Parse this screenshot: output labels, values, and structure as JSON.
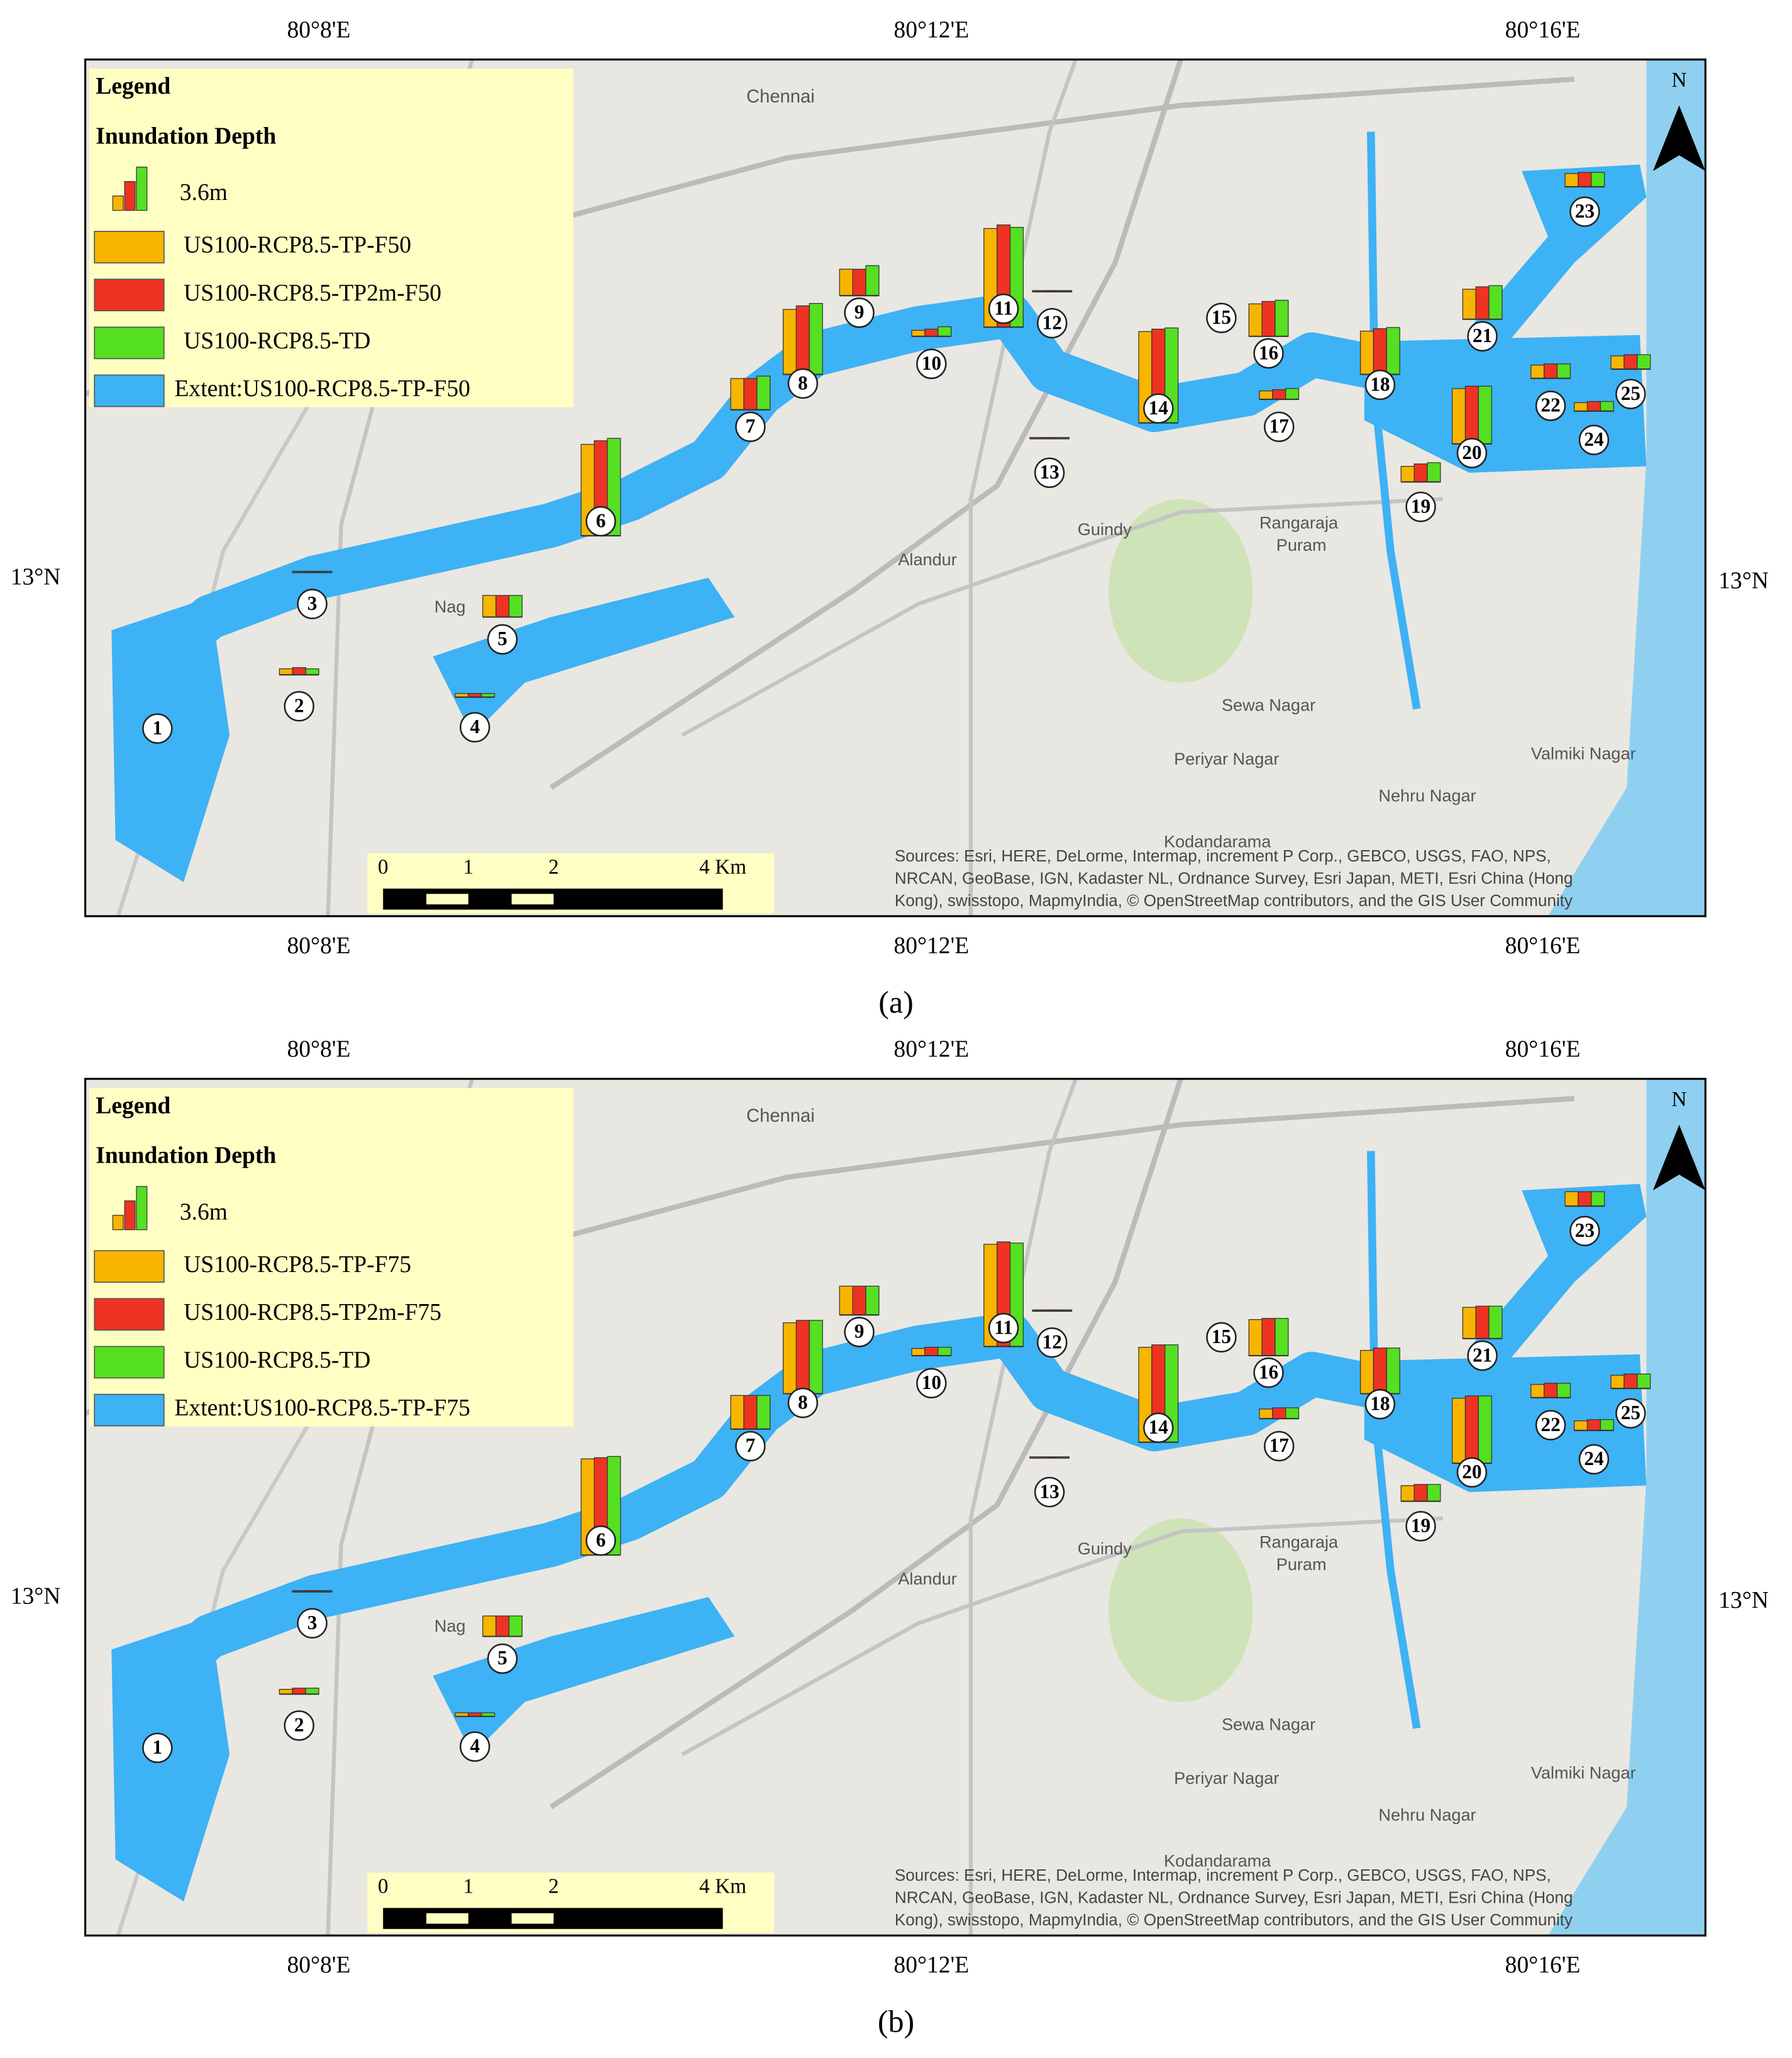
{
  "panels": [
    {
      "caption": "(a)",
      "lon_labels": [
        "80°8'E",
        "80°12'E",
        "80°16'E"
      ],
      "lat_label": "13°N",
      "north": "N",
      "legend": {
        "title": "Legend",
        "subtitle": "Inundation Depth",
        "scale_value": 3.6,
        "scale_label": "3.6m",
        "items": [
          {
            "label": "US100-RCP8.5-TP-F50",
            "color": "#f7b500"
          },
          {
            "label": "US100-RCP8.5-TP2m-F50",
            "color": "#ee3322"
          },
          {
            "label": "US100-RCP8.5-TD",
            "color": "#55e022"
          },
          {
            "label": "Extent:US100-RCP8.5-TP-F50",
            "color": "#3db2f5"
          }
        ]
      },
      "places": [
        "Chennai",
        "Alandur",
        "Guindy",
        "Rangaraja",
        "Puram",
        "Sewa Nagar",
        "Periyar Nagar",
        "Nehru Nagar",
        "Valmiki Nagar",
        "Kodandarama",
        "Nag"
      ],
      "scalebar_labels": [
        "0",
        "1",
        "2",
        "4 Km"
      ],
      "sources": [
        "Sources: Esri, HERE, DeLorme, Intermap, increment P Corp., GEBCO, USGS, FAO, NPS,",
        "NRCAN, GeoBase, IGN, Kadaster NL, Ordnance Survey, Esri Japan, METI, Esri China (Hong",
        "Kong), swisstopo, MapmyIndia, © OpenStreetMap contributors, and the GIS User Community"
      ],
      "stations": [
        {
          "label": "1",
          "depths": [
            0,
            0,
            0
          ]
        },
        {
          "label": "2",
          "depths": [
            0.5,
            0.6,
            0.5
          ]
        },
        {
          "label": "3",
          "depths": [
            0.1,
            0.1,
            0.1
          ]
        },
        {
          "label": "4",
          "depths": [
            0.3,
            0.3,
            0.3
          ]
        },
        {
          "label": "5",
          "depths": [
            1.8,
            1.8,
            1.8
          ]
        },
        {
          "label": "6",
          "depths": [
            7.6,
            7.9,
            8.1
          ]
        },
        {
          "label": "7",
          "depths": [
            2.6,
            2.6,
            2.8
          ]
        },
        {
          "label": "8",
          "depths": [
            5.4,
            5.7,
            5.9
          ]
        },
        {
          "label": "9",
          "depths": [
            2.2,
            2.2,
            2.5
          ]
        },
        {
          "label": "10",
          "depths": [
            0.5,
            0.6,
            0.8
          ]
        },
        {
          "label": "11",
          "depths": [
            8.2,
            8.5,
            8.3
          ]
        },
        {
          "label": "12",
          "depths": [
            0.1,
            0.1,
            0.1
          ]
        },
        {
          "label": "13",
          "depths": [
            0.1,
            0.1,
            0.1
          ]
        },
        {
          "label": "14",
          "depths": [
            7.6,
            7.8,
            7.9
          ]
        },
        {
          "label": "15",
          "depths": [
            0,
            0,
            0
          ]
        },
        {
          "label": "16",
          "depths": [
            2.7,
            2.9,
            3.0
          ]
        },
        {
          "label": "17",
          "depths": [
            0.7,
            0.8,
            0.9
          ]
        },
        {
          "label": "18",
          "depths": [
            3.6,
            3.8,
            3.9
          ]
        },
        {
          "label": "19",
          "depths": [
            1.3,
            1.5,
            1.6
          ]
        },
        {
          "label": "20",
          "depths": [
            4.6,
            4.8,
            4.8
          ]
        },
        {
          "label": "21",
          "depths": [
            2.5,
            2.7,
            2.8
          ]
        },
        {
          "label": "22",
          "depths": [
            1.1,
            1.2,
            1.2
          ]
        },
        {
          "label": "23",
          "depths": [
            1.1,
            1.2,
            1.2
          ]
        },
        {
          "label": "24",
          "depths": [
            0.7,
            0.8,
            0.8
          ]
        },
        {
          "label": "25",
          "depths": [
            1.1,
            1.2,
            1.2
          ]
        }
      ]
    },
    {
      "caption": "(b)",
      "lon_labels": [
        "80°8'E",
        "80°12'E",
        "80°16'E"
      ],
      "lat_label": "13°N",
      "north": "N",
      "legend": {
        "title": "Legend",
        "subtitle": "Inundation Depth",
        "scale_value": 3.6,
        "scale_label": "3.6m",
        "items": [
          {
            "label": "US100-RCP8.5-TP-F75",
            "color": "#f7b500"
          },
          {
            "label": "US100-RCP8.5-TP2m-F75",
            "color": "#ee3322"
          },
          {
            "label": "US100-RCP8.5-TD",
            "color": "#55e022"
          },
          {
            "label": "Extent:US100-RCP8.5-TP-F75",
            "color": "#3db2f5"
          }
        ]
      },
      "places": [
        "Chennai",
        "Alandur",
        "Guindy",
        "Rangaraja",
        "Puram",
        "Sewa Nagar",
        "Periyar Nagar",
        "Nehru Nagar",
        "Valmiki Nagar",
        "Kodandarama",
        "Nag"
      ],
      "scalebar_labels": [
        "0",
        "1",
        "2",
        "4 Km"
      ],
      "sources": [
        "Sources: Esri, HERE, DeLorme, Intermap, increment P Corp., GEBCO, USGS, FAO, NPS,",
        "NRCAN, GeoBase, IGN, Kadaster NL, Ordnance Survey, Esri Japan, METI, Esri China (Hong",
        "Kong), swisstopo, MapmyIndia, © OpenStreetMap contributors, and the GIS User Community"
      ],
      "stations": [
        {
          "label": "1",
          "depths": [
            0,
            0,
            0
          ]
        },
        {
          "label": "2",
          "depths": [
            0.4,
            0.5,
            0.5
          ]
        },
        {
          "label": "3",
          "depths": [
            0.1,
            0.1,
            0.1
          ]
        },
        {
          "label": "4",
          "depths": [
            0.3,
            0.3,
            0.3
          ]
        },
        {
          "label": "5",
          "depths": [
            1.7,
            1.7,
            1.7
          ]
        },
        {
          "label": "6",
          "depths": [
            8.0,
            8.1,
            8.2
          ]
        },
        {
          "label": "7",
          "depths": [
            2.8,
            2.8,
            2.8
          ]
        },
        {
          "label": "8",
          "depths": [
            5.9,
            6.1,
            6.1
          ]
        },
        {
          "label": "9",
          "depths": [
            2.4,
            2.4,
            2.4
          ]
        },
        {
          "label": "10",
          "depths": [
            0.6,
            0.7,
            0.7
          ]
        },
        {
          "label": "11",
          "depths": [
            8.5,
            8.7,
            8.6
          ]
        },
        {
          "label": "12",
          "depths": [
            0.1,
            0.1,
            0.1
          ]
        },
        {
          "label": "13",
          "depths": [
            0.1,
            0.1,
            0.1
          ]
        },
        {
          "label": "14",
          "depths": [
            7.9,
            8.1,
            8.1
          ]
        },
        {
          "label": "15",
          "depths": [
            0,
            0,
            0
          ]
        },
        {
          "label": "16",
          "depths": [
            3.0,
            3.1,
            3.1
          ]
        },
        {
          "label": "17",
          "depths": [
            0.8,
            0.9,
            0.9
          ]
        },
        {
          "label": "18",
          "depths": [
            3.6,
            3.8,
            3.8
          ]
        },
        {
          "label": "19",
          "depths": [
            1.3,
            1.4,
            1.4
          ]
        },
        {
          "label": "20",
          "depths": [
            5.4,
            5.6,
            5.6
          ]
        },
        {
          "label": "21",
          "depths": [
            2.6,
            2.7,
            2.7
          ]
        },
        {
          "label": "22",
          "depths": [
            1.1,
            1.2,
            1.2
          ]
        },
        {
          "label": "23",
          "depths": [
            1.2,
            1.2,
            1.2
          ]
        },
        {
          "label": "24",
          "depths": [
            0.8,
            0.9,
            0.9
          ]
        },
        {
          "label": "25",
          "depths": [
            1.1,
            1.2,
            1.2
          ]
        }
      ]
    }
  ]
}
